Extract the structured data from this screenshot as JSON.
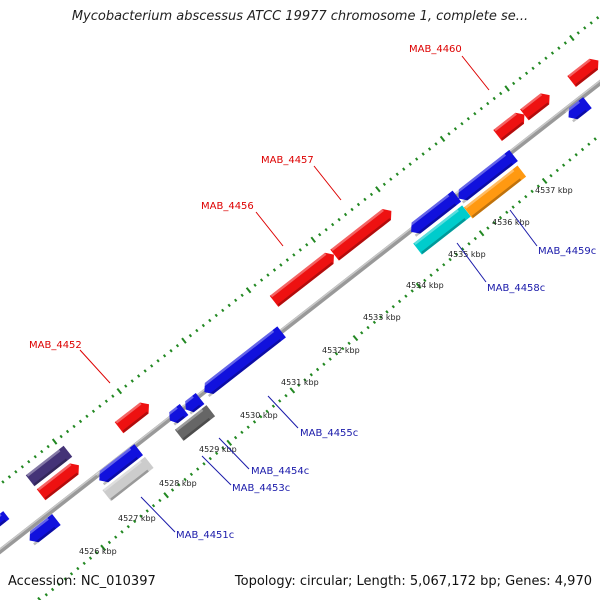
{
  "title": "Mycobacterium abscessus ATCC 19977 chromosome 1, complete se...",
  "footer": {
    "accession": "Accession: NC_010397",
    "summary": "Topology: circular; Length: 5,067,172 bp; Genes: 4,970"
  },
  "colors": {
    "forward_gene": "#ee1111",
    "reverse_gene": "#1111dd",
    "pseudogene": "#666666",
    "rna_gene": "#00cccc",
    "hypothetical": "#ff9911",
    "tick": "#228822",
    "backbone": "#888888",
    "forward_label": "#dd0000",
    "reverse_label": "#1a1aaa"
  },
  "tick_labels": [
    "4526 kbp",
    "4527 kbp",
    "4528 kbp",
    "4529 kbp",
    "4530 kbp",
    "4531 kbp",
    "4532 kbp",
    "4533 kbp",
    "4534 kbp",
    "4535 kbp",
    "4536 kbp",
    "4537 kbp"
  ],
  "gene_labels": {
    "forward": [
      "MAB_4452",
      "MAB_4456",
      "MAB_4457",
      "MAB_4460"
    ],
    "reverse": [
      "MAB_4451c",
      "MAB_4453c",
      "MAB_4454c",
      "MAB_4455c",
      "MAB_4458c",
      "MAB_4459c"
    ]
  }
}
